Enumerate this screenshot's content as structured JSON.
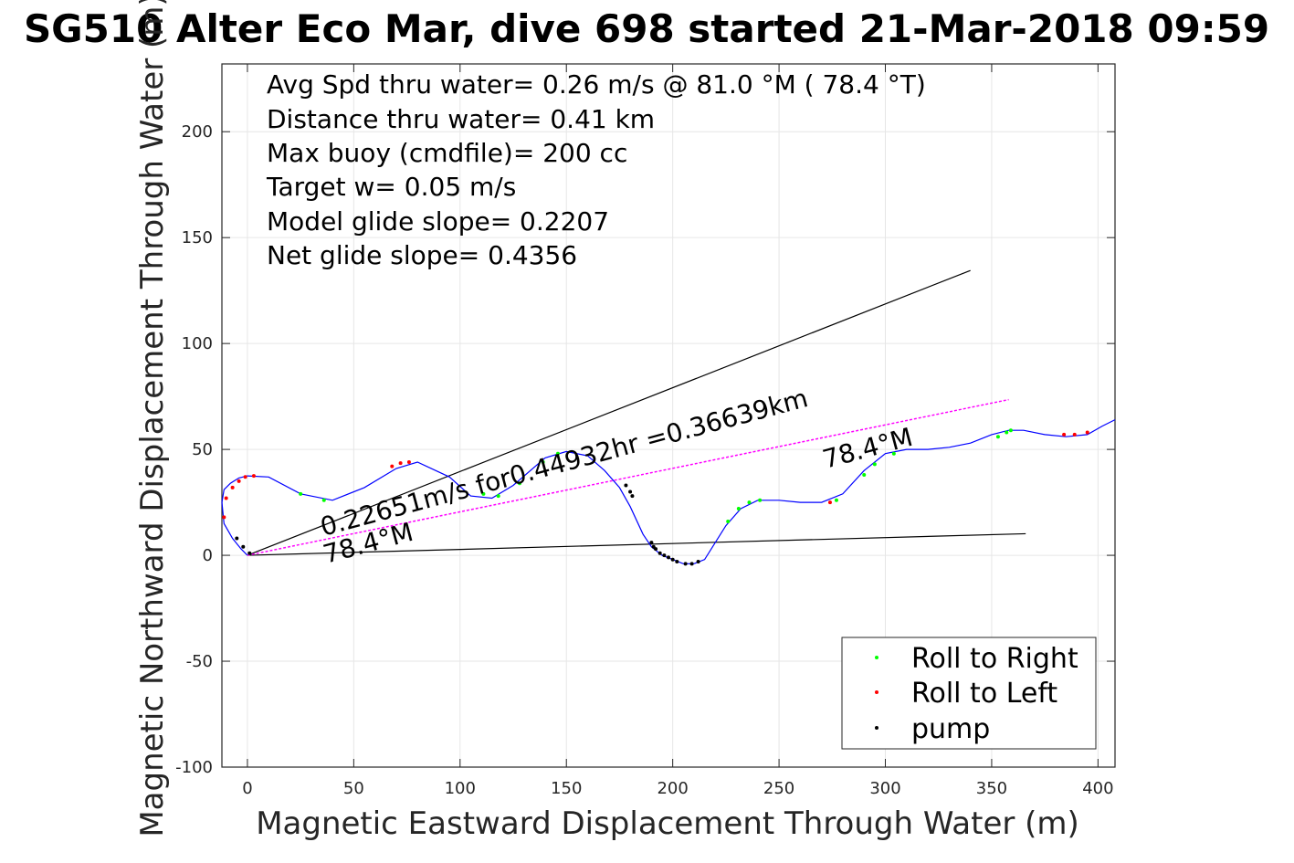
{
  "chart_data": {
    "type": "line",
    "title": "SG510 Alter Eco Mar, dive 698 started 21-Mar-2018 09:59",
    "xlabel": "Magnetic Eastward Displacement Through Water (m)",
    "ylabel": "Magnetic Northward Displacement Through Water (m)",
    "xlim": [
      -12,
      408
    ],
    "ylim": [
      -100,
      232
    ],
    "xticks": [
      0,
      50,
      100,
      150,
      200,
      250,
      300,
      350,
      400
    ],
    "xtick_labels": [
      "0",
      "50",
      "100",
      "150",
      "200",
      "250",
      "300",
      "350",
      "400"
    ],
    "yticks": [
      -100,
      -50,
      0,
      50,
      100,
      150,
      200
    ],
    "ytick_labels": [
      "-100",
      "-50",
      "0",
      "50",
      "100",
      "150",
      "200"
    ],
    "grid": true,
    "info_lines": [
      "Avg Spd thru water=  0.26 m/s @  81.0 °M ( 78.4 °T)",
      "Distance thru water=  0.41 km",
      "Max buoy (cmdfile)= 200 cc",
      "Target w= 0.05 m/s",
      "Model glide slope= 0.2207",
      "Net glide slope= 0.4356"
    ],
    "annotations": {
      "speed_text": "0.22651m/s for0.44932hr =0.36639km",
      "heading_near_origin": "78.4°M",
      "heading_far": "78.4°M"
    },
    "legend": {
      "placement": "bottom-right",
      "entries": [
        {
          "label": "Roll to Right",
          "color": "#00ff00"
        },
        {
          "label": "Roll to Left",
          "color": "#ff0000"
        },
        {
          "label": "pump",
          "color": "#000000"
        }
      ]
    },
    "lines": [
      {
        "name": "upper bound",
        "color": "#000000",
        "x": [
          0,
          340
        ],
        "y": [
          0,
          134.5
        ]
      },
      {
        "name": "lower bound",
        "color": "#000000",
        "x": [
          0,
          366
        ],
        "y": [
          0,
          10.2
        ]
      },
      {
        "name": "net track",
        "color": "#ff00ff",
        "x": [
          0,
          358
        ],
        "y": [
          0,
          73.5
        ]
      }
    ],
    "series": [
      {
        "name": "track",
        "color": "#0000ff",
        "x": [
          0,
          -3,
          -7,
          -11,
          -12,
          -11,
          -8,
          -4,
          0,
          10,
          25,
          40,
          55,
          70,
          80,
          95,
          105,
          115,
          125,
          140,
          150,
          160,
          168,
          175,
          180,
          186,
          190,
          195,
          200,
          205,
          210,
          215,
          220,
          225,
          232,
          240,
          250,
          260,
          270,
          280,
          290,
          300,
          310,
          320,
          330,
          340,
          350,
          358,
          365,
          375,
          385,
          395,
          402,
          408
        ],
        "y": [
          0,
          3,
          8,
          15,
          25,
          31,
          34,
          36.5,
          37.5,
          37,
          29,
          26,
          32,
          41,
          44,
          37,
          28,
          27,
          33,
          46,
          49,
          47,
          40,
          32,
          23,
          10,
          4,
          0,
          -2,
          -4,
          -4,
          -2,
          6,
          14,
          22,
          26,
          26,
          25,
          25,
          29,
          40,
          48,
          50,
          50,
          51,
          53,
          57,
          59,
          59,
          57,
          56,
          57,
          61,
          64
        ]
      },
      {
        "name": "Roll to Right",
        "color": "#00ff00",
        "x": [
          25,
          36,
          111,
          118,
          128,
          139,
          146,
          226,
          231,
          236,
          241,
          277,
          290,
          295,
          304,
          353,
          357,
          359
        ],
        "y": [
          29,
          26,
          29,
          28,
          34,
          44,
          48,
          16,
          22,
          25,
          26,
          26,
          38,
          43,
          48,
          56,
          58,
          59
        ]
      },
      {
        "name": "Roll to Left",
        "color": "#ff0000",
        "x": [
          -11,
          -10,
          -7,
          -4,
          -1,
          3,
          68,
          72,
          76,
          274,
          384,
          389,
          395
        ],
        "y": [
          18,
          27,
          32,
          35,
          37,
          37.5,
          42,
          43.5,
          44,
          25,
          57,
          57,
          58
        ]
      },
      {
        "name": "pump",
        "color": "#000000",
        "x": [
          -5,
          -2,
          1,
          178,
          180,
          181,
          190,
          191,
          192,
          194,
          196,
          198,
          200,
          202,
          206,
          209,
          212
        ],
        "y": [
          8,
          4,
          1,
          33,
          30,
          28,
          6,
          4,
          3,
          1,
          0,
          -1,
          -2,
          -3,
          -4,
          -4,
          -3
        ]
      }
    ]
  }
}
